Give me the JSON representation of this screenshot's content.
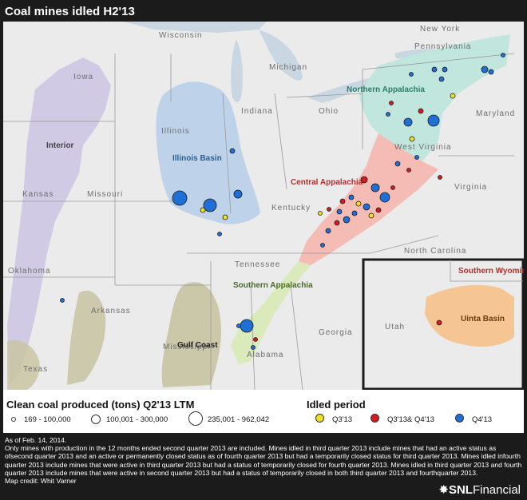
{
  "title": "Coal mines idled H2'13",
  "labels": {
    "states": {
      "wisconsin": "Wisconsin",
      "michigan": "Michigan",
      "new_york": "New York",
      "pennsylvania": "Pennsylvania",
      "iowa": "Iowa",
      "illinois": "Illinois",
      "indiana": "Indiana",
      "ohio": "Ohio",
      "maryland": "Maryland",
      "west_virginia": "West Virginia",
      "virginia": "Virginia",
      "kansas": "Kansas",
      "missouri": "Missouri",
      "kentucky": "Kentucky",
      "tennessee": "Tennessee",
      "north_carolina": "North Carolina",
      "oklahoma": "Oklahoma",
      "arkansas": "Arkansas",
      "mississippi": "Mississippi",
      "alabama": "Alabama",
      "georgia": "Georgia",
      "texas": "Texas",
      "utah": "Utah"
    },
    "basins": {
      "interior": "Interior",
      "illinois_basin": "Illinois Basin",
      "northern_appalachia": "Northern Appalachia",
      "central_appalachia": "Central Appalachia",
      "southern_appalachia": "Southern Appalachia",
      "gulf_coast": "Gulf Coast",
      "southern_wyoming": "Southern Wyoming",
      "uinta_basin": "Uinta Basin"
    }
  },
  "legend": {
    "size_title": "Clean coal produced (tons) Q2'13 LTM",
    "size_items": [
      "169 - 100,000",
      "100,001 - 300,000",
      "235,001 - 962,042"
    ],
    "period_title": "Idled period",
    "period_items": [
      {
        "label": "Q3'13",
        "color": "#f2e11c"
      },
      {
        "label": "Q3'13& Q4'13",
        "color": "#d71920"
      },
      {
        "label": "Q4'13",
        "color": "#1f6fd6"
      }
    ]
  },
  "notes": {
    "date": "As of Feb. 14, 2014.",
    "body": "Only mines with production in the 12 months ended second quarter 2013 are included. Mines idled in third quarter 2013 include mines that had an active status as ofsecond quarter 2013 and an active or permanently closed status as of fourth quarter 2013 but had a temporarily closed status for third quarter 2013. Mines idled infourth quarter 2013 include mines that were active in third quarter 2013 but had a status of temporarily closed for fourth quarter 2013. Mines idled in third quarter 2013 and fourth quarter 2013 include mines that were active in second quarter 2013 but had a status of temporarily closed in both third quarter 2013 and fourthquarter 2013.",
    "credit": "Map credit: Whit Varner"
  },
  "brand": {
    "prefix": "SNL",
    "suffix": "Financial"
  },
  "colors": {
    "q3": "#f2e11c",
    "q3q4": "#d71920",
    "q4": "#1f6fd6",
    "interior": "#cfc8e4",
    "illinois_basin": "#bcd2ea",
    "northern_appalachia": "#bfe6dc",
    "central_appalachia": "#f6b9b3",
    "southern_appalachia": "#d9eab8",
    "gulf_coast": "#c9c5a5",
    "uinta": "#f6c48f"
  }
}
